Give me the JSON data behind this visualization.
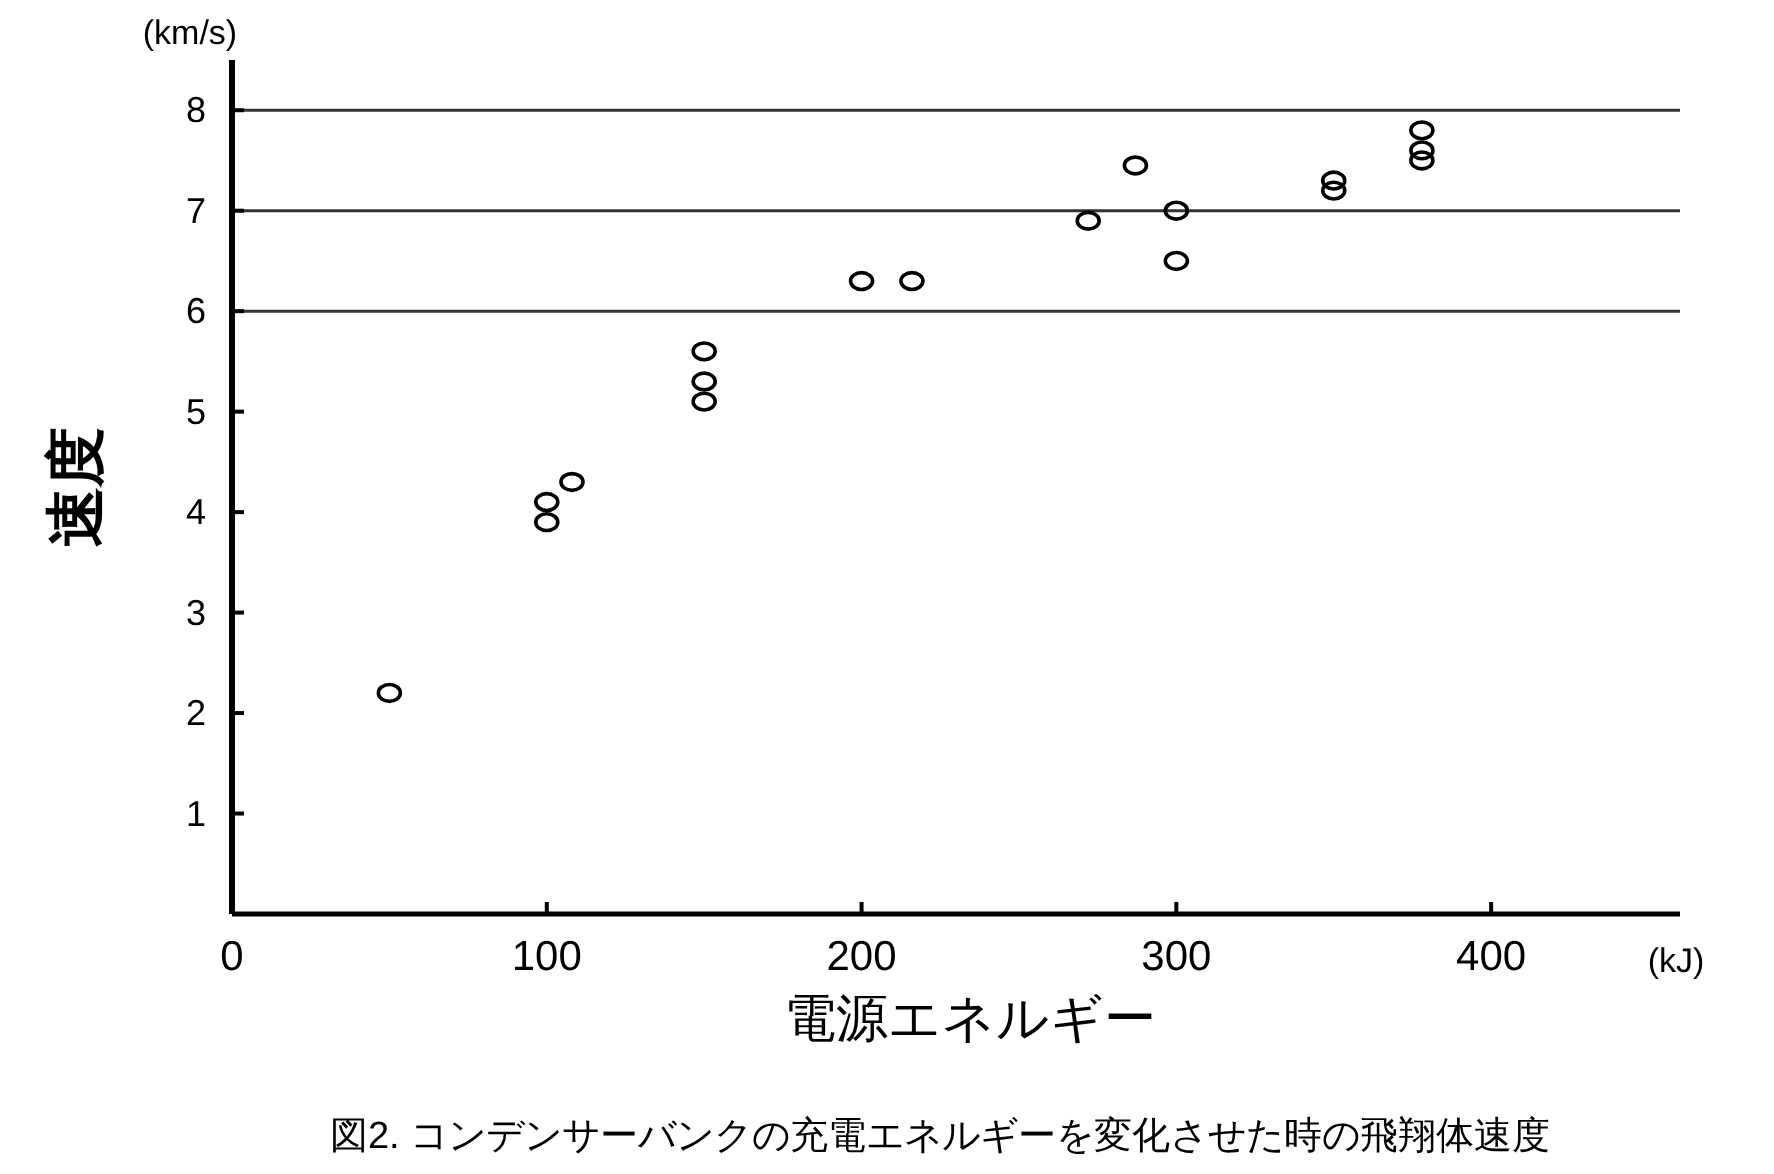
{
  "chart_data": {
    "type": "scatter",
    "title": "図2. コンデンサーバンクの充電エネルギーを変化させた時の飛翔体速度",
    "xlabel": "電源エネルギー",
    "ylabel": "速度",
    "annotations": [
      "(km/s)",
      "(kJ)"
    ],
    "x": [
      50,
      100,
      100,
      108,
      150,
      150,
      150,
      200,
      216,
      272,
      287,
      300,
      300,
      350,
      350,
      378,
      378,
      378
    ],
    "values": [
      2.2,
      4.1,
      3.9,
      4.3,
      5.6,
      5.3,
      5.1,
      6.3,
      6.3,
      6.9,
      7.45,
      7.0,
      6.5,
      7.3,
      7.2,
      7.8,
      7.6,
      7.5
    ],
    "color": "#000000",
    "marker": "circle",
    "xlim": [
      0,
      460
    ],
    "ylim": [
      0,
      8.5
    ],
    "xticks": [
      0,
      100,
      200,
      300,
      400
    ],
    "yticks": [
      {
        "value": 0,
        "label": null
      },
      1,
      2,
      3,
      4,
      5,
      6,
      7,
      8
    ],
    "ref_lines": [
      {
        "axis": "y",
        "value": 6,
        "label": null
      },
      {
        "axis": "y",
        "value": 7,
        "label": null
      },
      {
        "axis": "y",
        "value": 8,
        "label": null
      }
    ],
    "grid": false
  }
}
